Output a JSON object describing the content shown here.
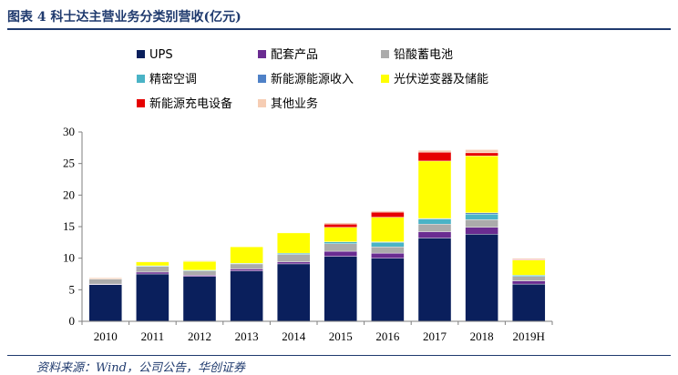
{
  "header": {
    "title": "图表 4   科士达主营业务分类别营收(亿元)"
  },
  "footer": {
    "source": "资料来源：Wind，公司公告，华创证券"
  },
  "chart_data": {
    "type": "bar",
    "stacked": true,
    "categories": [
      "2010",
      "2011",
      "2012",
      "2013",
      "2014",
      "2015",
      "2016",
      "2017",
      "2018",
      "2019H"
    ],
    "ylim": [
      0,
      30
    ],
    "yticks": [
      0,
      5,
      10,
      15,
      20,
      25,
      30
    ],
    "grid": false,
    "legend_position": "top",
    "series": [
      {
        "name": "UPS",
        "color": "#0a1f5c",
        "values": [
          5.8,
          7.5,
          7.1,
          8.0,
          9.1,
          10.3,
          10.0,
          13.2,
          13.8,
          5.9
        ]
      },
      {
        "name": "配套产品",
        "color": "#6a2c91",
        "values": [
          0.1,
          0.3,
          0.2,
          0.3,
          0.3,
          0.8,
          0.8,
          1.0,
          1.1,
          0.5
        ]
      },
      {
        "name": "铅酸蓄电池",
        "color": "#ababab",
        "values": [
          0.8,
          0.9,
          0.7,
          0.8,
          1.2,
          1.2,
          1.0,
          1.2,
          1.2,
          0.7
        ]
      },
      {
        "name": "精密空调",
        "color": "#4ab3c6",
        "values": [
          0.0,
          0.1,
          0.1,
          0.1,
          0.2,
          0.3,
          0.7,
          0.8,
          0.9,
          0.2
        ]
      },
      {
        "name": "新能源能源收入",
        "color": "#4f81c7",
        "values": [
          0.0,
          0.0,
          0.0,
          0.0,
          0.0,
          0.0,
          0.1,
          0.1,
          0.2,
          0.0
        ]
      },
      {
        "name": "光伏逆变器及储能",
        "color": "#ffff00",
        "values": [
          0.0,
          0.6,
          1.4,
          2.6,
          3.2,
          2.3,
          3.9,
          9.1,
          9.0,
          2.4
        ]
      },
      {
        "name": "新能源充电设备",
        "color": "#e60000",
        "values": [
          0.0,
          0.0,
          0.0,
          0.0,
          0.0,
          0.5,
          0.8,
          1.4,
          0.5,
          0.1
        ]
      },
      {
        "name": "其他业务",
        "color": "#f6cdb4",
        "values": [
          0.2,
          0.1,
          0.1,
          0.0,
          0.0,
          0.2,
          0.2,
          0.3,
          0.5,
          0.2
        ]
      }
    ]
  }
}
